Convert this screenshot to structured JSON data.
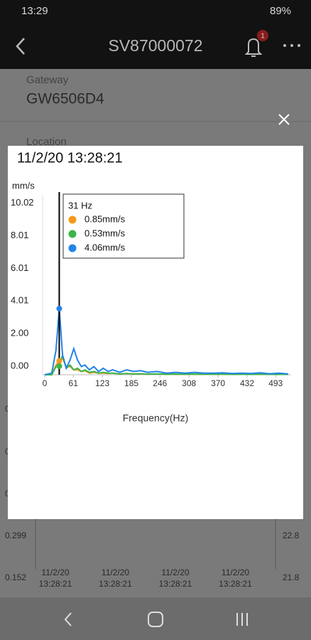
{
  "status_bar": {
    "time": "13:29",
    "battery": "89%"
  },
  "app_bar": {
    "title": "SV87000072",
    "badge": "1"
  },
  "background": {
    "gateway_label": "Gateway",
    "gateway": "GW6506D4",
    "location_label": "Location",
    "left_axis": [
      "0.",
      "0.",
      "0.",
      "0.299",
      "0.152"
    ],
    "right_axis": [
      "22.8",
      "21.8"
    ],
    "x_labels": [
      {
        "date": "11/2/20",
        "time": "13:28:21"
      },
      {
        "date": "11/2/20",
        "time": "13:28:21"
      },
      {
        "date": "11/2/20",
        "time": "13:28:21"
      },
      {
        "date": "11/2/20",
        "time": "13:28:21"
      }
    ]
  },
  "chart_data": {
    "type": "line",
    "title": "11/2/20 13:28:21",
    "y_unit": "mm/s",
    "x_label": "Frequency(Hz)",
    "x": [
      0,
      15,
      24,
      31,
      38,
      46,
      54,
      62,
      70,
      78,
      86,
      95,
      105,
      115,
      125,
      135,
      145,
      160,
      175,
      190,
      205,
      220,
      240,
      260,
      280,
      300,
      320,
      340,
      360,
      380,
      400,
      420,
      440,
      460,
      480,
      500,
      520
    ],
    "series": [
      {
        "color": "#f59a1b",
        "values": [
          0,
          0,
          0.6,
          0.85,
          1.0,
          0.5,
          0.5,
          0.3,
          0.3,
          0.2,
          0.25,
          0.1,
          0.15,
          0.1,
          0.1,
          0.08,
          0.1,
          0.05,
          0.08,
          0.05,
          0.06,
          0.04,
          0.05,
          0.03,
          0.04,
          0.03,
          0.04,
          0.03,
          0.03,
          0.03,
          0.02,
          0.03,
          0.02,
          0.03,
          0.02,
          0.02,
          0.02
        ]
      },
      {
        "color": "#3bb54a",
        "values": [
          0,
          0,
          0.5,
          0.53,
          1.2,
          0.4,
          0.6,
          0.3,
          0.4,
          0.2,
          0.3,
          0.15,
          0.2,
          0.1,
          0.15,
          0.1,
          0.1,
          0.05,
          0.08,
          0.05,
          0.06,
          0.04,
          0.05,
          0.03,
          0.04,
          0.03,
          0.04,
          0.03,
          0.03,
          0.03,
          0.02,
          0.03,
          0.02,
          0.03,
          0.02,
          0.02,
          0.02
        ]
      },
      {
        "color": "#2284e8",
        "values": [
          0,
          0.1,
          1.5,
          4.06,
          1.2,
          0.4,
          0.9,
          1.6,
          0.9,
          0.5,
          0.6,
          0.3,
          0.5,
          0.2,
          0.4,
          0.2,
          0.3,
          0.15,
          0.3,
          0.2,
          0.25,
          0.15,
          0.2,
          0.1,
          0.15,
          0.1,
          0.15,
          0.1,
          0.1,
          0.12,
          0.08,
          0.1,
          0.08,
          0.12,
          0.06,
          0.1,
          0.05
        ]
      }
    ],
    "cursor": {
      "x": 31,
      "label": "31 Hz",
      "values": [
        0.85,
        0.53,
        4.06
      ],
      "value_labels": [
        "0.85mm/s",
        "0.53mm/s",
        "4.06mm/s"
      ]
    },
    "xlim": [
      0,
      526
    ],
    "xticks": [
      0,
      61,
      123,
      185,
      246,
      308,
      370,
      432,
      493
    ],
    "ylim": [
      0,
      11
    ],
    "yticks": [
      {
        "value": 0,
        "label": "0.00"
      },
      {
        "value": 2,
        "label": "2.00"
      },
      4.01,
      6.01,
      8.01,
      10.02
    ]
  }
}
